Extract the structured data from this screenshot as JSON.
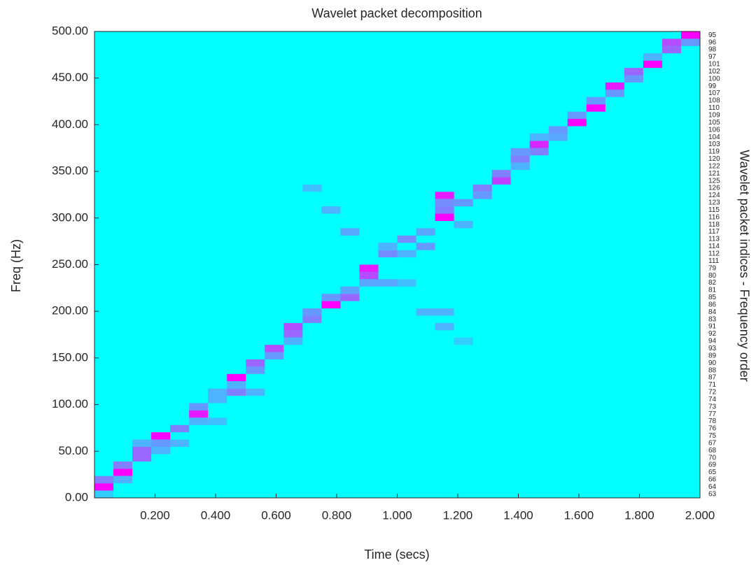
{
  "chart_data": {
    "type": "heatmap",
    "title": "Wavelet packet decomposition",
    "x_label": "Time (secs)",
    "y_label": "Freq (Hz)",
    "y2_label": "Wavelet packet indices - Frequency order",
    "xlim": [
      0,
      2
    ],
    "ylim": [
      0,
      500
    ],
    "clim": [
      0,
      1
    ],
    "colormap": [
      "#00ffff",
      "#ff00ff"
    ],
    "xticks": [
      {
        "value": 0.2,
        "label": "0.200"
      },
      {
        "value": 0.4,
        "label": "0.400"
      },
      {
        "value": 0.6,
        "label": "0.600"
      },
      {
        "value": 0.8,
        "label": "0.800"
      },
      {
        "value": 1,
        "label": "1.000"
      },
      {
        "value": 1.2,
        "label": "1.200"
      },
      {
        "value": 1.4,
        "label": "1.400"
      },
      {
        "value": 1.6,
        "label": "1.600"
      },
      {
        "value": 1.8,
        "label": "1.800"
      },
      {
        "value": 2,
        "label": "2.000"
      }
    ],
    "yticks": [
      {
        "value": 0,
        "label": "0.00"
      },
      {
        "value": 50,
        "label": "50.00"
      },
      {
        "value": 100,
        "label": "100.00"
      },
      {
        "value": 150,
        "label": "150.00"
      },
      {
        "value": 200,
        "label": "200.00"
      },
      {
        "value": 250,
        "label": "250.00"
      },
      {
        "value": 300,
        "label": "300.00"
      },
      {
        "value": 350,
        "label": "350.00"
      },
      {
        "value": 400,
        "label": "400.00"
      },
      {
        "value": 450,
        "label": "450.00"
      },
      {
        "value": 500,
        "label": "500.00"
      }
    ],
    "y2_labels": [
      63,
      64,
      66,
      65,
      69,
      70,
      68,
      67,
      75,
      76,
      78,
      77,
      73,
      74,
      72,
      71,
      87,
      88,
      90,
      89,
      93,
      94,
      92,
      91,
      83,
      84,
      86,
      85,
      81,
      82,
      80,
      79,
      111,
      112,
      114,
      113,
      117,
      118,
      116,
      115,
      123,
      124,
      126,
      125,
      121,
      122,
      120,
      119,
      103,
      104,
      106,
      105,
      109,
      110,
      108,
      107,
      99,
      100,
      102,
      101,
      97,
      98,
      96,
      95
    ],
    "cells": [
      {
        "x": 0,
        "y": 7.8125,
        "value": 1
      },
      {
        "x": 0,
        "y": 15.625,
        "value": 0.5
      },
      {
        "x": 0,
        "y": 0,
        "value": 0.2
      },
      {
        "x": 0.0625,
        "y": 23.4375,
        "value": 1
      },
      {
        "x": 0.0625,
        "y": 31.25,
        "value": 0.5
      },
      {
        "x": 0.0625,
        "y": 15.625,
        "value": 0.3
      },
      {
        "x": 0.125,
        "y": 39.0625,
        "value": 0.6
      },
      {
        "x": 0.125,
        "y": 46.875,
        "value": 0.6
      },
      {
        "x": 0.125,
        "y": 54.6875,
        "value": 0.3
      },
      {
        "x": 0.1875,
        "y": 62.5,
        "value": 1
      },
      {
        "x": 0.1875,
        "y": 54.6875,
        "value": 0.4
      },
      {
        "x": 0.1875,
        "y": 46.875,
        "value": 0.3
      },
      {
        "x": 0.25,
        "y": 70.3125,
        "value": 0.5
      },
      {
        "x": 0.25,
        "y": 54.6875,
        "value": 0.3
      },
      {
        "x": 0.3125,
        "y": 85.9375,
        "value": 0.9
      },
      {
        "x": 0.3125,
        "y": 93.75,
        "value": 0.4
      },
      {
        "x": 0.3125,
        "y": 78.125,
        "value": 0.3
      },
      {
        "x": 0.375,
        "y": 101.5625,
        "value": 0.3
      },
      {
        "x": 0.375,
        "y": 109.375,
        "value": 0.3
      },
      {
        "x": 0.375,
        "y": 78.125,
        "value": 0.25
      },
      {
        "x": 0.4375,
        "y": 125,
        "value": 1
      },
      {
        "x": 0.4375,
        "y": 109.375,
        "value": 0.5
      },
      {
        "x": 0.4375,
        "y": 117.1875,
        "value": 0.3
      },
      {
        "x": 0.5,
        "y": 140.625,
        "value": 0.6
      },
      {
        "x": 0.5,
        "y": 132.8125,
        "value": 0.4
      },
      {
        "x": 0.5,
        "y": 109.375,
        "value": 0.3
      },
      {
        "x": 0.5625,
        "y": 156.25,
        "value": 0.7
      },
      {
        "x": 0.5625,
        "y": 148.4375,
        "value": 0.4
      },
      {
        "x": 0.625,
        "y": 171.875,
        "value": 0.6
      },
      {
        "x": 0.625,
        "y": 179.6875,
        "value": 0.7
      },
      {
        "x": 0.625,
        "y": 164.0625,
        "value": 0.3
      },
      {
        "x": 0.6875,
        "y": 187.5,
        "value": 0.5
      },
      {
        "x": 0.6875,
        "y": 195.3125,
        "value": 0.4
      },
      {
        "x": 0.75,
        "y": 203.125,
        "value": 1
      },
      {
        "x": 0.75,
        "y": 210.9375,
        "value": 0.4
      },
      {
        "x": 0.8125,
        "y": 210.9375,
        "value": 0.6
      },
      {
        "x": 0.8125,
        "y": 218.75,
        "value": 0.35
      },
      {
        "x": 0.875,
        "y": 234.375,
        "value": 0.7
      },
      {
        "x": 0.875,
        "y": 242.1875,
        "value": 0.9
      },
      {
        "x": 0.875,
        "y": 226.5625,
        "value": 0.35
      },
      {
        "x": 0.9375,
        "y": 257.8125,
        "value": 0.45
      },
      {
        "x": 0.9375,
        "y": 226.5625,
        "value": 0.35
      },
      {
        "x": 0.9375,
        "y": 265.625,
        "value": 0.3
      },
      {
        "x": 1,
        "y": 273.4375,
        "value": 0.45
      },
      {
        "x": 1,
        "y": 257.8125,
        "value": 0.3
      },
      {
        "x": 1,
        "y": 226.5625,
        "value": 0.25
      },
      {
        "x": 1.0625,
        "y": 265.625,
        "value": 0.4
      },
      {
        "x": 1.0625,
        "y": 281.25,
        "value": 0.35
      },
      {
        "x": 1.0625,
        "y": 195.3125,
        "value": 0.3
      },
      {
        "x": 1.125,
        "y": 296.875,
        "value": 1
      },
      {
        "x": 1.125,
        "y": 320.3125,
        "value": 0.9
      },
      {
        "x": 1.125,
        "y": 304.6875,
        "value": 0.5
      },
      {
        "x": 1.125,
        "y": 312.5,
        "value": 0.45
      },
      {
        "x": 1.1875,
        "y": 312.5,
        "value": 0.4
      },
      {
        "x": 1.1875,
        "y": 289.0625,
        "value": 0.3
      },
      {
        "x": 1.25,
        "y": 328.125,
        "value": 0.5
      },
      {
        "x": 1.25,
        "y": 320.3125,
        "value": 0.4
      },
      {
        "x": 1.3125,
        "y": 335.9375,
        "value": 0.75
      },
      {
        "x": 1.3125,
        "y": 343.75,
        "value": 0.5
      },
      {
        "x": 1.375,
        "y": 351.5625,
        "value": 0.3
      },
      {
        "x": 1.375,
        "y": 359.375,
        "value": 0.5
      },
      {
        "x": 1.375,
        "y": 367.1875,
        "value": 0.4
      },
      {
        "x": 1.4375,
        "y": 375,
        "value": 0.85
      },
      {
        "x": 1.4375,
        "y": 367.1875,
        "value": 0.5
      },
      {
        "x": 1.4375,
        "y": 382.8125,
        "value": 0.3
      },
      {
        "x": 1.5,
        "y": 390.625,
        "value": 0.4
      },
      {
        "x": 1.5,
        "y": 382.8125,
        "value": 0.35
      },
      {
        "x": 1.5625,
        "y": 398.4375,
        "value": 1
      },
      {
        "x": 1.5625,
        "y": 406.25,
        "value": 0.4
      },
      {
        "x": 1.625,
        "y": 414.0625,
        "value": 1
      },
      {
        "x": 1.625,
        "y": 421.875,
        "value": 0.4
      },
      {
        "x": 1.6875,
        "y": 437.5,
        "value": 0.9
      },
      {
        "x": 1.6875,
        "y": 429.6875,
        "value": 0.4
      },
      {
        "x": 1.75,
        "y": 453.125,
        "value": 0.6
      },
      {
        "x": 1.75,
        "y": 445.3125,
        "value": 0.4
      },
      {
        "x": 1.8125,
        "y": 460.9375,
        "value": 1
      },
      {
        "x": 1.8125,
        "y": 468.75,
        "value": 0.3
      },
      {
        "x": 1.875,
        "y": 476.5625,
        "value": 0.6
      },
      {
        "x": 1.875,
        "y": 484.375,
        "value": 0.7
      },
      {
        "x": 1.9375,
        "y": 492.1875,
        "value": 1
      },
      {
        "x": 1.9375,
        "y": 484.375,
        "value": 0.4
      },
      {
        "x": 0.75,
        "y": 304.6875,
        "value": 0.3
      },
      {
        "x": 0.6875,
        "y": 328.125,
        "value": 0.25
      },
      {
        "x": 0.8125,
        "y": 281.25,
        "value": 0.35
      },
      {
        "x": 1.125,
        "y": 179.6875,
        "value": 0.3
      },
      {
        "x": 1.125,
        "y": 195.3125,
        "value": 0.3
      },
      {
        "x": 1.1875,
        "y": 164.0625,
        "value": 0.2
      }
    ]
  }
}
